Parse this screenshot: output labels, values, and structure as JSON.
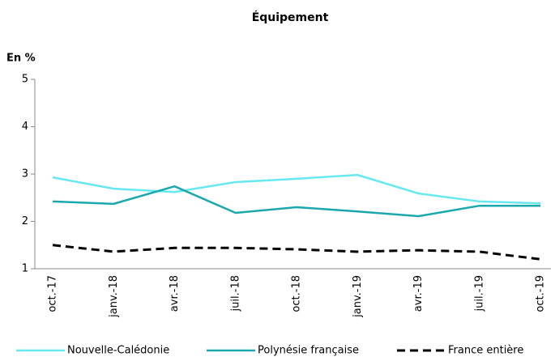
{
  "chart_data": {
    "type": "line",
    "title": "Équipement",
    "y_label": "En %",
    "categories": [
      "oct.-17",
      "janv.-18",
      "avr.-18",
      "juil.-18",
      "oct.-18",
      "janv.-19",
      "avr.-19",
      "juil.-19",
      "oct.-19"
    ],
    "series": [
      {
        "name": "Nouvelle-Calédonie",
        "color": "#66e8f0",
        "dashed": false,
        "values": [
          2.93,
          2.69,
          2.62,
          2.83,
          2.9,
          2.98,
          2.59,
          2.42,
          2.38
        ]
      },
      {
        "name": "Polynésie française",
        "color": "#1ba8ad",
        "dashed": false,
        "values": [
          2.42,
          2.37,
          2.74,
          2.18,
          2.3,
          2.21,
          2.11,
          2.33,
          2.33
        ]
      },
      {
        "name": "France entière",
        "color": "#000000",
        "dashed": true,
        "values": [
          1.5,
          1.36,
          1.44,
          1.44,
          1.41,
          1.36,
          1.39,
          1.36,
          1.2
        ]
      }
    ],
    "ylim": [
      1,
      5
    ],
    "yticks": [
      1,
      2,
      3,
      4,
      5
    ],
    "grid": false,
    "legend": "bottom"
  }
}
